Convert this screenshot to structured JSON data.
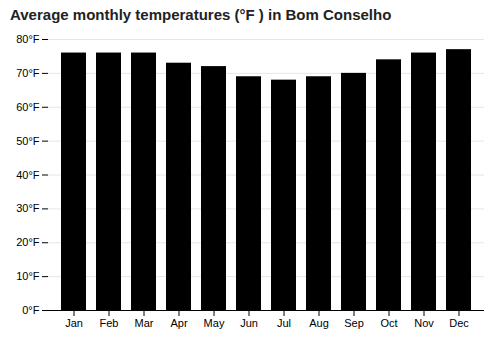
{
  "chart_data": {
    "type": "bar",
    "title": "Average monthly temperatures (°F ) in Bom Conselho",
    "categories": [
      "Jan",
      "Feb",
      "Mar",
      "Apr",
      "May",
      "Jun",
      "Jul",
      "Aug",
      "Sep",
      "Oct",
      "Nov",
      "Dec"
    ],
    "values": [
      76,
      76,
      76,
      73,
      72,
      69,
      68,
      69,
      70,
      74,
      76,
      77
    ],
    "ylim": [
      0,
      80
    ],
    "yticks": [
      {
        "value": 0,
        "label": "0°F"
      },
      {
        "value": 10,
        "label": "10°F"
      },
      {
        "value": 20,
        "label": "20°F"
      },
      {
        "value": 30,
        "label": "30°F"
      },
      {
        "value": 40,
        "label": "40°F"
      },
      {
        "value": 50,
        "label": "50°F"
      },
      {
        "value": 60,
        "label": "60°F"
      },
      {
        "value": 70,
        "label": "70°F"
      },
      {
        "value": 80,
        "label": "80°F"
      }
    ],
    "grid": true
  }
}
